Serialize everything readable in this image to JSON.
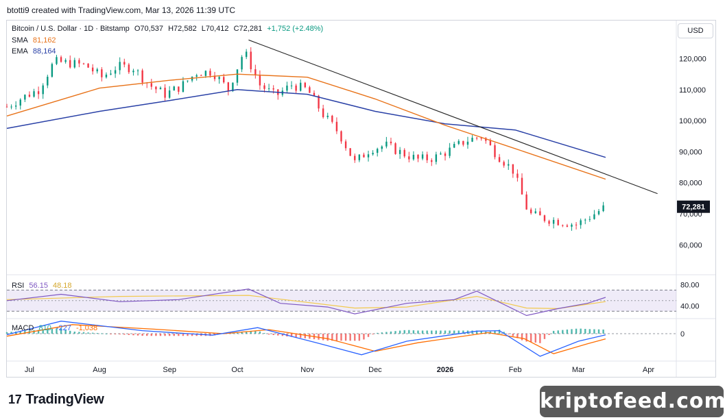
{
  "header": {
    "attribution": "btotti9 created with TradingView.com, Mar 13, 2026 11:39 UTC"
  },
  "legend": {
    "symbol": "Bitcoin / U.S. Dollar · 1D · Bitstamp",
    "open": "O70,537",
    "high": "H72,582",
    "low": "L70,412",
    "close": "C72,281",
    "change": "+1,752 (+2.48%)",
    "sma_label": "SMA",
    "sma_value": "81,162",
    "ema_label": "EMA",
    "ema_value": "88,164",
    "rsi_label": "RSI",
    "rsi_value": "56.15",
    "rsi_ma": "48.18",
    "macd_label": "MACD",
    "macd_hist": "810",
    "macd_line": "-227",
    "macd_signal": "-1,038"
  },
  "currency_button": "USD",
  "branding": {
    "tv_logo": "TradingView",
    "watermark": "kriptofeed.com"
  },
  "colors": {
    "up": "#089981",
    "down": "#f23645",
    "sma": "#e8731a",
    "ema": "#2940a6",
    "rsi": "#7e57c2",
    "rsi_ma": "#f2c94c",
    "macd": "#2962ff",
    "signal": "#ff6d00",
    "trendline": "#222222"
  },
  "chart_data": [
    {
      "type": "candlestick",
      "title": "Bitcoin / U.S. Dollar · 1D · Bitstamp",
      "x_ticks": [
        "Jul",
        "Aug",
        "Sep",
        "Oct",
        "Nov",
        "Dec",
        "2026",
        "Feb",
        "Mar",
        "Apr"
      ],
      "y_ticks": [
        60000,
        70000,
        80000,
        90000,
        100000,
        110000,
        120000
      ],
      "ylim": [
        55000,
        128500
      ],
      "last_price_label": "72,281",
      "series_close": {
        "x": [
          "2025-06-21",
          "2025-06-28",
          "2025-07-05",
          "2025-07-12",
          "2025-07-19",
          "2025-07-26",
          "2025-08-02",
          "2025-08-09",
          "2025-08-16",
          "2025-08-23",
          "2025-08-30",
          "2025-09-06",
          "2025-09-13",
          "2025-09-20",
          "2025-09-27",
          "2025-10-04",
          "2025-10-11",
          "2025-10-18",
          "2025-10-25",
          "2025-11-01",
          "2025-11-08",
          "2025-11-15",
          "2025-11-22",
          "2025-11-29",
          "2025-12-06",
          "2025-12-13",
          "2025-12-20",
          "2025-12-27",
          "2026-01-03",
          "2026-01-10",
          "2026-01-17",
          "2026-01-24",
          "2026-01-31",
          "2026-02-07",
          "2026-02-14",
          "2026-02-21",
          "2026-02-28",
          "2026-03-07",
          "2026-03-13"
        ],
        "values": [
          104500,
          107500,
          110000,
          119000,
          118500,
          117800,
          114000,
          117500,
          117000,
          111500,
          108500,
          111000,
          115500,
          115800,
          110000,
          122500,
          111500,
          108000,
          111500,
          110000,
          102000,
          96000,
          86500,
          91000,
          92000,
          89500,
          87500,
          88000,
          90500,
          93500,
          95000,
          89000,
          84000,
          70000,
          68500,
          67500,
          66500,
          69500,
          72281
        ]
      },
      "sma": {
        "name": "SMA",
        "value": 81162,
        "x": [
          "2025-06-21",
          "2025-08-01",
          "2025-09-01",
          "2025-10-01",
          "2025-11-01",
          "2025-12-01",
          "2026-01-01",
          "2026-02-01",
          "2026-03-13"
        ],
        "values": [
          101500,
          110500,
          113000,
          115000,
          114000,
          107000,
          98500,
          91000,
          81162
        ]
      },
      "ema": {
        "name": "EMA",
        "value": 88164,
        "x": [
          "2025-06-21",
          "2025-08-01",
          "2025-09-01",
          "2025-10-01",
          "2025-11-01",
          "2025-12-01",
          "2026-01-01",
          "2026-02-01",
          "2026-03-13"
        ],
        "values": [
          97500,
          103000,
          106500,
          110000,
          108500,
          103000,
          99000,
          97000,
          88164
        ]
      },
      "trendline": {
        "x": [
          "2025-10-06",
          "2026-04-05"
        ],
        "values": [
          126000,
          76500
        ]
      }
    },
    {
      "type": "line",
      "title": "RSI",
      "y_ticks": [
        40,
        80
      ],
      "ylim": [
        20,
        95
      ],
      "band": [
        30,
        70
      ],
      "series": [
        {
          "name": "RSI",
          "x": [
            "2025-06-21",
            "2025-07-15",
            "2025-08-10",
            "2025-09-05",
            "2025-10-06",
            "2025-10-20",
            "2025-11-10",
            "2025-11-22",
            "2025-12-15",
            "2026-01-05",
            "2026-01-15",
            "2026-02-06",
            "2026-02-20",
            "2026-03-05",
            "2026-03-13"
          ],
          "values": [
            50,
            62,
            48,
            52,
            72,
            45,
            38,
            25,
            45,
            52,
            68,
            22,
            35,
            45,
            56.15
          ]
        },
        {
          "name": "RSI MA",
          "x": [
            "2025-06-21",
            "2025-08-10",
            "2025-10-06",
            "2025-11-22",
            "2025-12-15",
            "2026-01-15",
            "2026-02-06",
            "2026-02-20",
            "2026-03-13"
          ],
          "values": [
            52,
            58,
            60,
            36,
            38,
            58,
            36,
            35,
            48.18
          ]
        }
      ]
    },
    {
      "type": "line",
      "title": "MACD",
      "y_ticks": [
        0
      ],
      "ylim": [
        -6000,
        3000
      ],
      "series": [
        {
          "name": "MACD",
          "x": [
            "2025-06-21",
            "2025-07-15",
            "2025-08-20",
            "2025-09-20",
            "2025-10-10",
            "2025-11-05",
            "2025-11-25",
            "2025-12-15",
            "2026-01-15",
            "2026-01-25",
            "2026-02-12",
            "2026-03-01",
            "2026-03-13"
          ],
          "values": [
            -200,
            2500,
            600,
            -300,
            1200,
            -1800,
            -4200,
            -1500,
            500,
            600,
            -4500,
            -1500,
            -227
          ]
        },
        {
          "name": "Signal",
          "x": [
            "2025-06-21",
            "2025-07-20",
            "2025-08-25",
            "2025-09-25",
            "2025-10-15",
            "2025-11-10",
            "2025-12-01",
            "2025-12-20",
            "2026-01-20",
            "2026-02-05",
            "2026-02-18",
            "2026-03-05",
            "2026-03-13"
          ],
          "values": [
            -500,
            1800,
            900,
            0,
            800,
            -1000,
            -3500,
            -1800,
            200,
            -1000,
            -4000,
            -2000,
            -1038
          ]
        }
      ],
      "histogram_last": 810
    }
  ]
}
